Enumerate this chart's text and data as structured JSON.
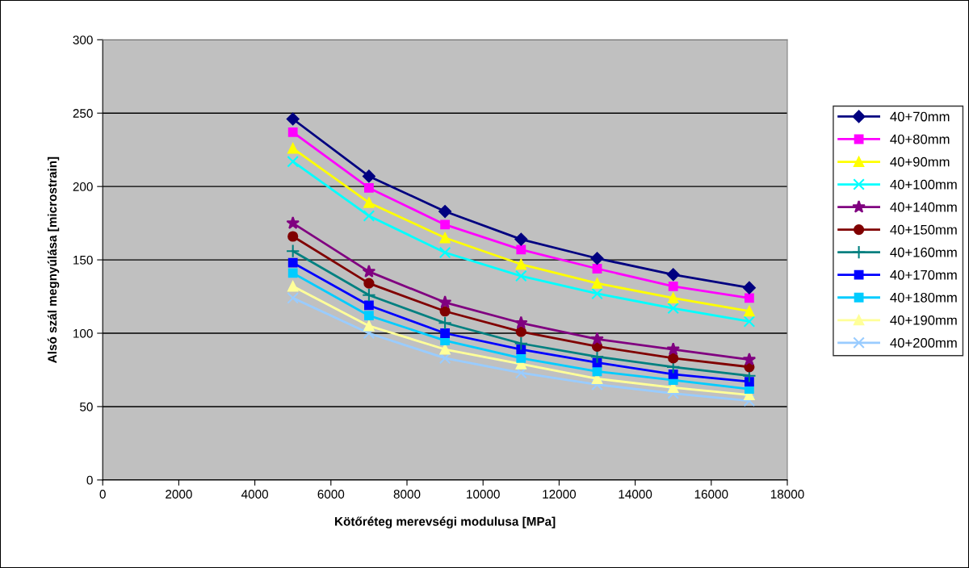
{
  "chart_data": {
    "type": "line",
    "xlabel": "Kötőréteg merevségi modulusa [MPa]",
    "ylabel": "Alsó szál megnyúlása [microstrain]",
    "x": [
      5000,
      7000,
      9000,
      11000,
      13000,
      15000,
      17000
    ],
    "xlim": [
      0,
      18000
    ],
    "xticks": [
      0,
      2000,
      4000,
      6000,
      8000,
      10000,
      12000,
      14000,
      16000,
      18000
    ],
    "ylim": [
      0,
      300
    ],
    "yticks": [
      0,
      50,
      100,
      150,
      200,
      250,
      300
    ],
    "grid": "y",
    "legend": "right",
    "series": [
      {
        "name": "40+70mm",
        "color": "#000080",
        "marker": "diamond",
        "values": [
          246,
          207,
          183,
          164,
          151,
          140,
          131
        ]
      },
      {
        "name": "40+80mm",
        "color": "#ff00ff",
        "marker": "square",
        "values": [
          237,
          199,
          174,
          157,
          144,
          132,
          124
        ]
      },
      {
        "name": "40+90mm",
        "color": "#ffff00",
        "marker": "triangle",
        "values": [
          226,
          189,
          165,
          147,
          134,
          124,
          115
        ]
      },
      {
        "name": "40+100mm",
        "color": "#00ffff",
        "marker": "cross",
        "values": [
          217,
          180,
          155,
          139,
          127,
          117,
          108
        ]
      },
      {
        "name": "40+140mm",
        "color": "#800080",
        "marker": "star",
        "values": [
          175,
          142,
          121,
          107,
          96,
          89,
          82
        ]
      },
      {
        "name": "40+150mm",
        "color": "#800000",
        "marker": "circle",
        "values": [
          166,
          134,
          115,
          101,
          91,
          83,
          77
        ]
      },
      {
        "name": "40+160mm",
        "color": "#008080",
        "marker": "plus",
        "values": [
          156,
          126,
          107,
          93,
          84,
          77,
          71
        ]
      },
      {
        "name": "40+170mm",
        "color": "#0000ff",
        "marker": "square",
        "values": [
          148,
          119,
          100,
          89,
          80,
          72,
          67
        ]
      },
      {
        "name": "40+180mm",
        "color": "#00ccff",
        "marker": "square",
        "values": [
          141,
          112,
          95,
          83,
          74,
          68,
          62
        ]
      },
      {
        "name": "40+190mm",
        "color": "#ffff99",
        "marker": "triangle",
        "values": [
          132,
          105,
          89,
          79,
          69,
          63,
          58
        ]
      },
      {
        "name": "40+200mm",
        "color": "#99ccff",
        "marker": "cross",
        "values": [
          124,
          100,
          83,
          73,
          65,
          59,
          54
        ]
      }
    ]
  }
}
